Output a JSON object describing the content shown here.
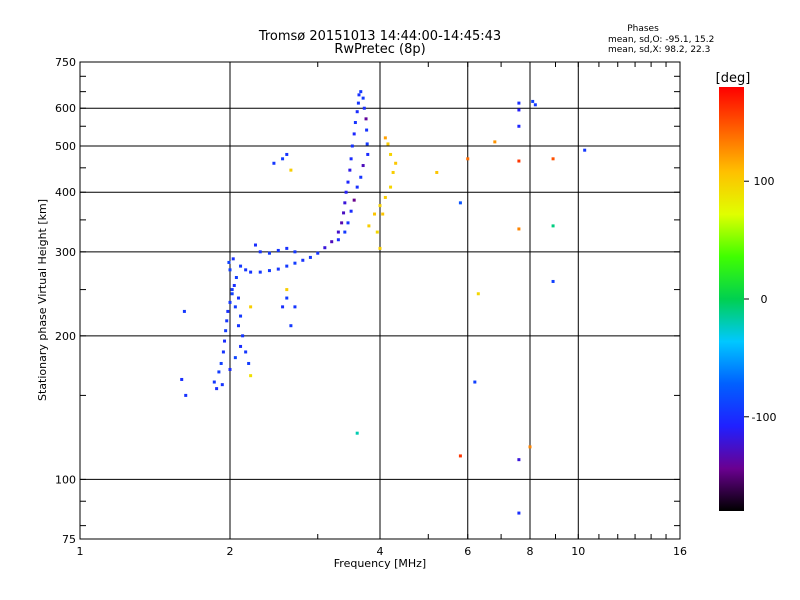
{
  "chart_data": {
    "type": "scatter",
    "title": "Tromsø 20151013 14:44:00-14:45:43",
    "subtitle": "RwPretec (8p)",
    "xlabel": "Frequency [MHz]",
    "ylabel": "Stationary phase Virtual Height [km]",
    "xscale": "log",
    "yscale": "log",
    "xlim": [
      1,
      16
    ],
    "ylim": [
      75,
      750
    ],
    "x_ticks": [
      1,
      2,
      4,
      6,
      8,
      10,
      16
    ],
    "y_ticks": [
      75,
      100,
      200,
      300,
      400,
      500,
      600,
      750
    ],
    "grid": true,
    "phases_box": {
      "title": "Phases",
      "line_o": "mean, sd,O: -95.1, 15.2",
      "line_x": "mean, sd,X:  98.2, 22.3"
    },
    "colorbar": {
      "label": "[deg]",
      "range": [
        -180,
        180
      ],
      "ticks": [
        100,
        0,
        -100
      ]
    },
    "points": [
      [
        1.62,
        225,
        -95
      ],
      [
        1.6,
        162,
        -100
      ],
      [
        1.63,
        150,
        -98
      ],
      [
        1.86,
        160,
        -95
      ],
      [
        1.88,
        155,
        -100
      ],
      [
        1.9,
        168,
        -92
      ],
      [
        1.92,
        175,
        -90
      ],
      [
        1.94,
        185,
        -97
      ],
      [
        1.95,
        195,
        -101
      ],
      [
        1.96,
        205,
        -93
      ],
      [
        1.97,
        215,
        -96
      ],
      [
        1.98,
        225,
        -99
      ],
      [
        2.0,
        235,
        -95
      ],
      [
        2.02,
        245,
        -90
      ],
      [
        2.04,
        255,
        -100
      ],
      [
        2.06,
        265,
        -92
      ],
      [
        2.08,
        240,
        -98
      ],
      [
        2.1,
        220,
        -94
      ],
      [
        2.12,
        200,
        -96
      ],
      [
        2.05,
        180,
        -88
      ],
      [
        2.0,
        170,
        -102
      ],
      [
        1.93,
        158,
        -97
      ],
      [
        2.15,
        185,
        -95
      ],
      [
        2.18,
        175,
        -92
      ],
      [
        2.2,
        165,
        90
      ],
      [
        2.1,
        190,
        -100
      ],
      [
        2.08,
        210,
        -96
      ],
      [
        2.05,
        230,
        -93
      ],
      [
        2.02,
        250,
        -95
      ],
      [
        2.0,
        275,
        -91
      ],
      [
        1.99,
        285,
        -89
      ],
      [
        2.03,
        290,
        -99
      ],
      [
        2.1,
        280,
        -94
      ],
      [
        2.15,
        275,
        -96
      ],
      [
        2.2,
        272,
        -97
      ],
      [
        2.3,
        272,
        -95
      ],
      [
        2.4,
        274,
        -93
      ],
      [
        2.5,
        276,
        -96
      ],
      [
        2.6,
        280,
        -94
      ],
      [
        2.7,
        284,
        -92
      ],
      [
        2.8,
        288,
        -98
      ],
      [
        2.9,
        292,
        -95
      ],
      [
        3.0,
        298,
        -97
      ],
      [
        3.1,
        306,
        -120
      ],
      [
        3.2,
        315,
        -130
      ],
      [
        3.3,
        330,
        -125
      ],
      [
        3.35,
        345,
        -135
      ],
      [
        3.38,
        362,
        -128
      ],
      [
        3.4,
        380,
        -120
      ],
      [
        3.42,
        400,
        -110
      ],
      [
        3.45,
        420,
        -105
      ],
      [
        3.48,
        445,
        -115
      ],
      [
        3.5,
        470,
        -102
      ],
      [
        3.52,
        500,
        -98
      ],
      [
        3.55,
        530,
        -104
      ],
      [
        3.57,
        560,
        -97
      ],
      [
        3.6,
        590,
        -101
      ],
      [
        3.62,
        615,
        -96
      ],
      [
        3.63,
        640,
        -99
      ],
      [
        3.66,
        650,
        -95
      ],
      [
        3.7,
        630,
        -93
      ],
      [
        3.72,
        600,
        -100
      ],
      [
        3.75,
        570,
        -140
      ],
      [
        3.76,
        540,
        -97
      ],
      [
        3.77,
        505,
        -94
      ],
      [
        3.78,
        480,
        -102
      ],
      [
        3.7,
        455,
        -130
      ],
      [
        3.66,
        430,
        -96
      ],
      [
        3.6,
        410,
        -99
      ],
      [
        3.55,
        385,
        -145
      ],
      [
        3.5,
        365,
        -101
      ],
      [
        3.45,
        345,
        -97
      ],
      [
        3.4,
        330,
        -94
      ],
      [
        3.3,
        318,
        -100
      ],
      [
        2.3,
        300,
        -98
      ],
      [
        2.4,
        298,
        -94
      ],
      [
        2.5,
        302,
        -96
      ],
      [
        2.6,
        305,
        -99
      ],
      [
        2.7,
        300,
        -95
      ],
      [
        2.25,
        310,
        -100
      ],
      [
        2.55,
        230,
        -100
      ],
      [
        2.6,
        240,
        -92
      ],
      [
        2.7,
        230,
        -96
      ],
      [
        2.65,
        210,
        -94
      ],
      [
        2.45,
        460,
        -95
      ],
      [
        2.55,
        470,
        -92
      ],
      [
        2.6,
        480,
        -97
      ],
      [
        2.65,
        445,
        100
      ],
      [
        2.6,
        250,
        100
      ],
      [
        2.2,
        230,
        100
      ],
      [
        3.8,
        340,
        100
      ],
      [
        3.9,
        360,
        105
      ],
      [
        4.0,
        375,
        98
      ],
      [
        4.1,
        390,
        102
      ],
      [
        4.2,
        410,
        96
      ],
      [
        4.25,
        440,
        100
      ],
      [
        4.3,
        460,
        104
      ],
      [
        4.2,
        480,
        97
      ],
      [
        4.15,
        505,
        101
      ],
      [
        4.05,
        360,
        105
      ],
      [
        3.95,
        330,
        95
      ],
      [
        4.0,
        305,
        100
      ],
      [
        4.1,
        520,
        120
      ],
      [
        5.2,
        440,
        105
      ],
      [
        6.0,
        470,
        140
      ],
      [
        6.3,
        245,
        95
      ],
      [
        6.8,
        510,
        125
      ],
      [
        5.8,
        380,
        -80
      ],
      [
        6.2,
        160,
        -90
      ],
      [
        3.6,
        125,
        -20
      ],
      [
        7.6,
        615,
        -100
      ],
      [
        7.6,
        595,
        -110
      ],
      [
        7.6,
        550,
        -105
      ],
      [
        7.6,
        465,
        160
      ],
      [
        7.6,
        335,
        130
      ],
      [
        7.6,
        110,
        -120
      ],
      [
        7.6,
        85,
        -100
      ],
      [
        8.1,
        620,
        -90
      ],
      [
        8.2,
        610,
        -95
      ],
      [
        8.9,
        470,
        150
      ],
      [
        8.9,
        340,
        -10
      ],
      [
        8.9,
        260,
        -90
      ],
      [
        10.3,
        490,
        -95
      ],
      [
        5.8,
        112,
        160
      ],
      [
        8.0,
        117,
        130
      ]
    ]
  }
}
